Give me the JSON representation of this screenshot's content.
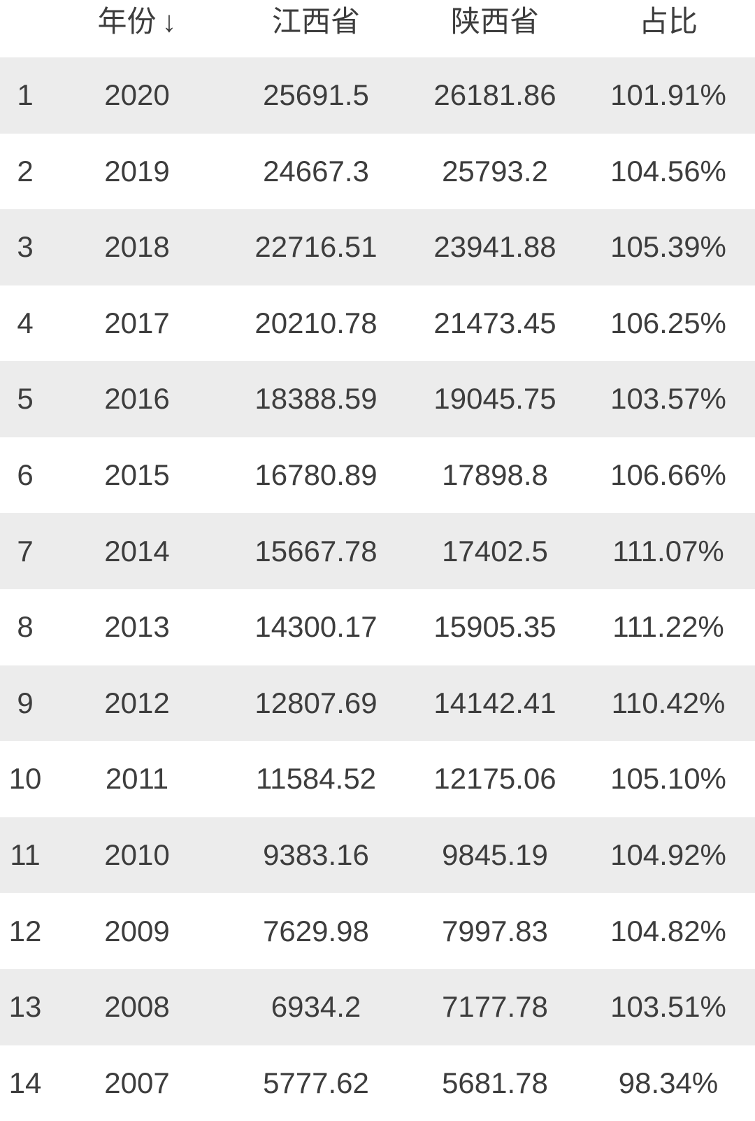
{
  "table": {
    "columns": [
      {
        "label": ""
      },
      {
        "label": "年份",
        "sort_indicator": "↓"
      },
      {
        "label": "江西省"
      },
      {
        "label": "陕西省"
      },
      {
        "label": "占比"
      }
    ],
    "rows": [
      {
        "index": "1",
        "year": "2020",
        "jiangxi": "25691.5",
        "shaanxi": "26181.86",
        "ratio": "101.91%"
      },
      {
        "index": "2",
        "year": "2019",
        "jiangxi": "24667.3",
        "shaanxi": "25793.2",
        "ratio": "104.56%"
      },
      {
        "index": "3",
        "year": "2018",
        "jiangxi": "22716.51",
        "shaanxi": "23941.88",
        "ratio": "105.39%"
      },
      {
        "index": "4",
        "year": "2017",
        "jiangxi": "20210.78",
        "shaanxi": "21473.45",
        "ratio": "106.25%"
      },
      {
        "index": "5",
        "year": "2016",
        "jiangxi": "18388.59",
        "shaanxi": "19045.75",
        "ratio": "103.57%"
      },
      {
        "index": "6",
        "year": "2015",
        "jiangxi": "16780.89",
        "shaanxi": "17898.8",
        "ratio": "106.66%"
      },
      {
        "index": "7",
        "year": "2014",
        "jiangxi": "15667.78",
        "shaanxi": "17402.5",
        "ratio": "111.07%"
      },
      {
        "index": "8",
        "year": "2013",
        "jiangxi": "14300.17",
        "shaanxi": "15905.35",
        "ratio": "111.22%"
      },
      {
        "index": "9",
        "year": "2012",
        "jiangxi": "12807.69",
        "shaanxi": "14142.41",
        "ratio": "110.42%"
      },
      {
        "index": "10",
        "year": "2011",
        "jiangxi": "11584.52",
        "shaanxi": "12175.06",
        "ratio": "105.10%"
      },
      {
        "index": "11",
        "year": "2010",
        "jiangxi": "9383.16",
        "shaanxi": "9845.19",
        "ratio": "104.92%"
      },
      {
        "index": "12",
        "year": "2009",
        "jiangxi": "7629.98",
        "shaanxi": "7997.83",
        "ratio": "104.82%"
      },
      {
        "index": "13",
        "year": "2008",
        "jiangxi": "6934.2",
        "shaanxi": "7177.78",
        "ratio": "103.51%"
      },
      {
        "index": "14",
        "year": "2007",
        "jiangxi": "5777.62",
        "shaanxi": "5681.78",
        "ratio": "98.34%"
      }
    ]
  },
  "colors": {
    "stripe": "#ececec",
    "background": "#ffffff",
    "text": "#3d3d3d"
  },
  "chart_data": {
    "type": "table",
    "columns": [
      "年份",
      "江西省",
      "陕西省",
      "占比"
    ],
    "sort_column": "年份",
    "sort_indicator": "↓",
    "rows": [
      [
        2020,
        25691.5,
        26181.86,
        "101.91%"
      ],
      [
        2019,
        24667.3,
        25793.2,
        "104.56%"
      ],
      [
        2018,
        22716.51,
        23941.88,
        "105.39%"
      ],
      [
        2017,
        20210.78,
        21473.45,
        "106.25%"
      ],
      [
        2016,
        18388.59,
        19045.75,
        "103.57%"
      ],
      [
        2015,
        16780.89,
        17898.8,
        "106.66%"
      ],
      [
        2014,
        15667.78,
        17402.5,
        "111.07%"
      ],
      [
        2013,
        14300.17,
        15905.35,
        "111.22%"
      ],
      [
        2012,
        12807.69,
        14142.41,
        "110.42%"
      ],
      [
        2011,
        11584.52,
        12175.06,
        "105.10%"
      ],
      [
        2010,
        9383.16,
        9845.19,
        "104.92%"
      ],
      [
        2009,
        7629.98,
        7997.83,
        "104.82%"
      ],
      [
        2008,
        6934.2,
        7177.78,
        "103.51%"
      ],
      [
        2007,
        5777.62,
        5681.78,
        "98.34%"
      ]
    ]
  }
}
